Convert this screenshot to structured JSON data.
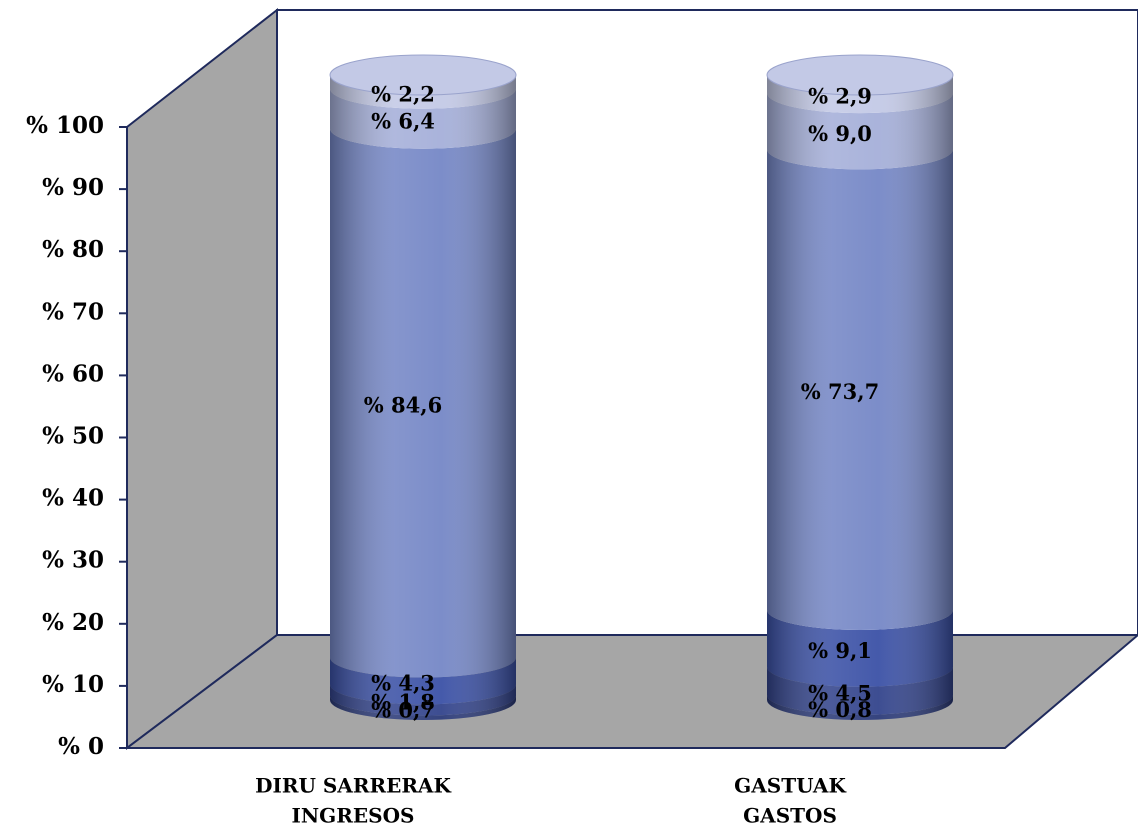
{
  "chart_data": {
    "type": "stacked_cylinder",
    "categories": [
      [
        "DIRU SARRERAK",
        "INGRESOS"
      ],
      [
        "GASTUAK",
        "GASTOS"
      ]
    ],
    "series": [
      {
        "color": "#2b3a78",
        "values": [
          0.7,
          0.8
        ],
        "value_labels": [
          "% 0,7",
          "% 0,8"
        ]
      },
      {
        "color": "#33448c",
        "values": [
          1.8,
          4.5
        ],
        "value_labels": [
          "% 1,8",
          "% 4,5"
        ]
      },
      {
        "color": "#3b51a6",
        "values": [
          4.3,
          9.1
        ],
        "value_labels": [
          "% 4,3",
          "% 9,1"
        ]
      },
      {
        "color": "#7587c6",
        "values": [
          84.6,
          73.7
        ],
        "value_labels": [
          "% 84,6",
          "% 73,7"
        ]
      },
      {
        "color": "#a5afd9",
        "values": [
          6.4,
          9.0
        ],
        "value_labels": [
          "% 6,4",
          "% 9,0"
        ]
      },
      {
        "color": "#c3c9e6",
        "values": [
          2.2,
          2.9
        ],
        "value_labels": [
          "% 2,2",
          "% 2,9"
        ]
      }
    ],
    "ylim": [
      0,
      100
    ],
    "yticks": [
      {
        "value": 0,
        "label": "% 0"
      },
      {
        "value": 10,
        "label": "% 10"
      },
      {
        "value": 20,
        "label": "% 20"
      },
      {
        "value": 30,
        "label": "% 30"
      },
      {
        "value": 40,
        "label": "% 40"
      },
      {
        "value": 50,
        "label": "% 50"
      },
      {
        "value": 60,
        "label": "% 60"
      },
      {
        "value": 70,
        "label": "% 70"
      },
      {
        "value": 80,
        "label": "% 80"
      },
      {
        "value": 90,
        "label": "% 90"
      },
      {
        "value": 100,
        "label": "% 100"
      }
    ]
  }
}
